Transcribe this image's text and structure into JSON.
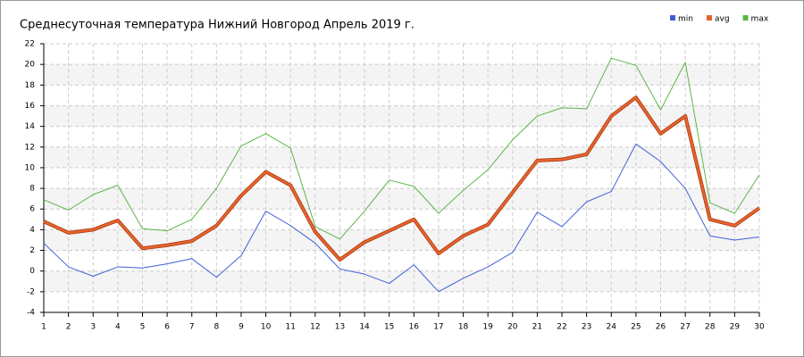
{
  "chart_data": {
    "type": "line",
    "title": "Среднесуточная температура Нижний Новгород  Апрель 2019 г.",
    "x": [
      1,
      2,
      3,
      4,
      5,
      6,
      7,
      8,
      9,
      10,
      11,
      12,
      13,
      14,
      15,
      16,
      17,
      18,
      19,
      20,
      21,
      22,
      23,
      24,
      25,
      26,
      27,
      28,
      29,
      30
    ],
    "xlim": [
      1,
      30
    ],
    "xticks": [
      1,
      2,
      3,
      4,
      5,
      6,
      7,
      8,
      9,
      10,
      11,
      12,
      13,
      14,
      15,
      16,
      17,
      18,
      19,
      20,
      21,
      22,
      23,
      24,
      25,
      26,
      27,
      28,
      29,
      30
    ],
    "ylim": [
      -4,
      22
    ],
    "yticks": [
      -4,
      -2,
      0,
      2,
      4,
      6,
      8,
      10,
      12,
      14,
      16,
      18,
      20,
      22
    ],
    "grid": true,
    "legend": "top-right",
    "series": [
      {
        "name": "min",
        "color": "#3f5fd8",
        "values": [
          2.7,
          0.4,
          -0.5,
          0.4,
          0.3,
          0.7,
          1.2,
          -0.6,
          1.5,
          5.8,
          4.4,
          2.7,
          0.2,
          -0.3,
          -1.2,
          0.6,
          -2.0,
          -0.7,
          0.4,
          1.8,
          5.7,
          4.3,
          6.7,
          7.7,
          12.3,
          10.6,
          8.0,
          3.4,
          3.0,
          3.3
        ]
      },
      {
        "name": "avg",
        "color": "#e8622c",
        "values": [
          4.8,
          3.7,
          4.0,
          4.9,
          2.2,
          2.5,
          2.9,
          4.4,
          7.3,
          9.6,
          8.3,
          3.8,
          1.1,
          2.8,
          3.9,
          5.0,
          1.7,
          3.4,
          4.5,
          7.6,
          10.7,
          10.8,
          11.3,
          15.0,
          16.8,
          13.3,
          15.0,
          5.0,
          4.4,
          6.1
        ]
      },
      {
        "name": "max",
        "color": "#5cb548",
        "values": [
          6.9,
          5.9,
          7.4,
          8.3,
          4.1,
          3.9,
          5.0,
          8.0,
          12.1,
          13.3,
          11.9,
          4.3,
          3.1,
          5.8,
          8.8,
          8.2,
          5.6,
          7.8,
          9.8,
          12.7,
          15.0,
          15.8,
          15.7,
          20.6,
          19.9,
          15.6,
          20.2,
          6.6,
          5.6,
          9.3
        ]
      }
    ]
  }
}
